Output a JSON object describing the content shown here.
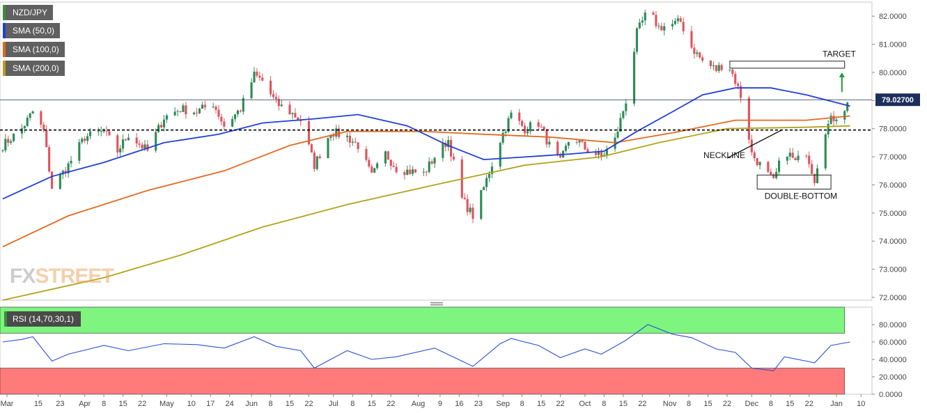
{
  "legend": {
    "symbol": "NZD/JPY",
    "sma50": "SMA (50,0)",
    "sma100": "SMA (100,0)",
    "sma200": "SMA (200,0)"
  },
  "rsi_label": "RSI (14,70,30,1)",
  "watermark": {
    "part1": "FX",
    "part2": "STREET"
  },
  "colors": {
    "up": "#2e8b57",
    "down": "#e0535c",
    "sma50": "#1f3fd6",
    "sma100": "#e2691f",
    "sma200": "#b3a21a",
    "rsi_line": "#2a4fd4",
    "overbought_zone": "#7ef57e",
    "oversold_zone": "#ff7b7b",
    "price_badge": "#1c2f5a"
  },
  "chart_data": [
    {
      "type": "candlestick",
      "title": "NZD/JPY",
      "xlabel": "",
      "ylabel": "",
      "ylim": [
        71.9,
        82.5
      ],
      "y_ticks": [
        "72.0000",
        "73.0000",
        "74.0000",
        "75.0000",
        "76.0000",
        "77.0000",
        "78.0000",
        "79.0000",
        "80.0000",
        "81.0000",
        "82.0000"
      ],
      "x_ticks": [
        "Mar",
        "15",
        "23",
        "Apr",
        "8",
        "15",
        "22",
        "May",
        "10",
        "17",
        "24",
        "Jun",
        "8",
        "15",
        "22",
        "Jul",
        "8",
        "15",
        "22",
        "Aug",
        "9",
        "16",
        "23",
        "Sep",
        "8",
        "15",
        "22",
        "Oct",
        "8",
        "15",
        "22",
        "Nov",
        "8",
        "15",
        "22",
        "Dec",
        "8",
        "15",
        "22",
        "Jan",
        "10"
      ],
      "last_price": "79.02700",
      "horizontal_line": 79.027,
      "dashed_neckline_level": 77.95,
      "x_range_start": "2020-03-02",
      "x_range_end": "2021-01-04",
      "series": [
        {
          "name": "NZD/JPY",
          "kind": "ohlc",
          "anchors": [
            [
              "2020-03-02",
              77.4
            ],
            [
              "2020-03-09",
              78.0
            ],
            [
              "2020-03-13",
              78.6
            ],
            [
              "2020-03-17",
              77.9
            ],
            [
              "2020-03-20",
              75.9
            ],
            [
              "2020-03-26",
              76.7
            ],
            [
              "2020-04-01",
              77.7
            ],
            [
              "2020-04-08",
              77.9
            ],
            [
              "2020-04-13",
              77.2
            ],
            [
              "2020-04-17",
              77.8
            ],
            [
              "2020-04-24",
              77.2
            ],
            [
              "2020-04-30",
              78.4
            ],
            [
              "2020-05-06",
              78.7
            ],
            [
              "2020-05-12",
              78.6
            ],
            [
              "2020-05-18",
              78.9
            ],
            [
              "2020-05-22",
              78.1
            ],
            [
              "2020-05-28",
              78.7
            ],
            [
              "2020-06-02",
              79.9
            ],
            [
              "2020-06-05",
              79.7
            ],
            [
              "2020-06-10",
              78.9
            ],
            [
              "2020-06-15",
              78.6
            ],
            [
              "2020-06-19",
              78.3
            ],
            [
              "2020-06-24",
              76.7
            ],
            [
              "2020-06-30",
              77.9
            ],
            [
              "2020-07-06",
              77.7
            ],
            [
              "2020-07-10",
              77.4
            ],
            [
              "2020-07-15",
              76.3
            ],
            [
              "2020-07-20",
              77.1
            ],
            [
              "2020-07-24",
              76.6
            ],
            [
              "2020-07-28",
              76.5
            ],
            [
              "2020-08-03",
              76.4
            ],
            [
              "2020-08-07",
              77.0
            ],
            [
              "2020-08-12",
              77.6
            ],
            [
              "2020-08-17",
              75.5
            ],
            [
              "2020-08-21",
              74.9
            ],
            [
              "2020-08-25",
              75.9
            ],
            [
              "2020-08-31",
              77.6
            ],
            [
              "2020-09-04",
              78.5
            ],
            [
              "2020-09-09",
              78.0
            ],
            [
              "2020-09-14",
              78.2
            ],
            [
              "2020-09-18",
              77.4
            ],
            [
              "2020-09-22",
              76.8
            ],
            [
              "2020-09-26",
              77.8
            ],
            [
              "2020-10-01",
              77.3
            ],
            [
              "2020-10-07",
              77.0
            ],
            [
              "2020-10-12",
              77.6
            ],
            [
              "2020-10-16",
              79.0
            ],
            [
              "2020-10-20",
              81.4
            ],
            [
              "2020-10-24",
              82.2
            ],
            [
              "2020-10-28",
              81.6
            ],
            [
              "2020-11-02",
              81.7
            ],
            [
              "2020-11-05",
              81.8
            ],
            [
              "2020-11-09",
              80.9
            ],
            [
              "2020-11-13",
              80.4
            ],
            [
              "2020-11-18",
              80.1
            ],
            [
              "2020-11-22",
              80.4
            ],
            [
              "2020-11-25",
              79.7
            ],
            [
              "2020-11-28",
              78.9
            ],
            [
              "2020-12-01",
              77.1
            ],
            [
              "2020-12-05",
              76.6
            ],
            [
              "2020-12-09",
              76.1
            ],
            [
              "2020-12-13",
              77.3
            ],
            [
              "2020-12-17",
              76.8
            ],
            [
              "2020-12-21",
              77.2
            ],
            [
              "2020-12-24",
              76.2
            ],
            [
              "2020-12-27",
              77.8
            ],
            [
              "2020-12-30",
              78.3
            ],
            [
              "2021-01-03",
              78.6
            ],
            [
              "2021-01-06",
              79.0
            ]
          ]
        },
        {
          "name": "SMA (50,0)",
          "kind": "line",
          "points": [
            [
              "2020-03-02",
              75.5
            ],
            [
              "2020-03-20",
              76.3
            ],
            [
              "2020-04-08",
              76.8
            ],
            [
              "2020-04-30",
              77.5
            ],
            [
              "2020-05-20",
              77.8
            ],
            [
              "2020-06-05",
              78.2
            ],
            [
              "2020-06-24",
              78.35
            ],
            [
              "2020-07-10",
              78.5
            ],
            [
              "2020-07-28",
              78.1
            ],
            [
              "2020-08-12",
              77.4
            ],
            [
              "2020-08-25",
              76.9
            ],
            [
              "2020-09-10",
              77.0
            ],
            [
              "2020-09-26",
              77.1
            ],
            [
              "2020-10-08",
              77.2
            ],
            [
              "2020-10-20",
              77.9
            ],
            [
              "2020-11-02",
              78.6
            ],
            [
              "2020-11-13",
              79.2
            ],
            [
              "2020-11-25",
              79.45
            ],
            [
              "2020-12-08",
              79.45
            ],
            [
              "2020-12-21",
              79.2
            ],
            [
              "2021-01-06",
              78.8
            ]
          ]
        },
        {
          "name": "SMA (100,0)",
          "kind": "line",
          "points": [
            [
              "2020-03-02",
              73.8
            ],
            [
              "2020-03-26",
              74.9
            ],
            [
              "2020-04-24",
              75.8
            ],
            [
              "2020-05-22",
              76.5
            ],
            [
              "2020-06-15",
              77.4
            ],
            [
              "2020-07-06",
              77.9
            ],
            [
              "2020-08-03",
              77.9
            ],
            [
              "2020-08-25",
              77.8
            ],
            [
              "2020-09-18",
              77.7
            ],
            [
              "2020-10-12",
              77.5
            ],
            [
              "2020-11-02",
              77.85
            ],
            [
              "2020-11-25",
              78.3
            ],
            [
              "2020-12-21",
              78.3
            ],
            [
              "2021-01-06",
              78.45
            ]
          ]
        },
        {
          "name": "SMA (200,0)",
          "kind": "line",
          "points": [
            [
              "2020-03-02",
              71.9
            ],
            [
              "2020-04-08",
              72.7
            ],
            [
              "2020-05-06",
              73.5
            ],
            [
              "2020-06-05",
              74.5
            ],
            [
              "2020-07-06",
              75.3
            ],
            [
              "2020-08-07",
              76.0
            ],
            [
              "2020-09-09",
              76.7
            ],
            [
              "2020-10-07",
              77.0
            ],
            [
              "2020-10-28",
              77.5
            ],
            [
              "2020-11-22",
              78.0
            ],
            [
              "2020-12-21",
              78.05
            ],
            [
              "2021-01-06",
              78.1
            ]
          ]
        }
      ],
      "annotations": [
        {
          "text": "TARGET",
          "x": "2021-01-02",
          "y": 80.55
        },
        {
          "text": "NECKLINE",
          "x": "2020-11-21",
          "y": 76.95
        },
        {
          "text": "DOUBLE-BOTTOM",
          "x": "2020-12-19",
          "y": 75.5
        }
      ],
      "boxes": [
        {
          "x0": "2020-11-23",
          "x1": "2021-01-04",
          "y0": 80.15,
          "y1": 80.4
        },
        {
          "x0": "2020-12-03",
          "x1": "2020-12-30",
          "y0": 75.85,
          "y1": 76.35
        }
      ],
      "neckline_segment": {
        "x0": "2020-11-22",
        "y0": 76.95,
        "x1": "2020-12-12",
        "y1": 77.95
      },
      "target_arrow": {
        "x": "2021-01-03",
        "y_from": 79.3,
        "y_to": 80.0
      }
    },
    {
      "type": "line",
      "title": "RSI (14,70,30,1)",
      "xlabel": "",
      "ylabel": "",
      "ylim": [
        0,
        100
      ],
      "y_ticks": [
        "0.0000",
        "20.0000",
        "40.0000",
        "60.0000",
        "80.0000"
      ],
      "overbought": 70,
      "oversold": 30,
      "series": [
        {
          "name": "RSI (14,70,30,1)",
          "points": [
            [
              "2020-03-02",
              60
            ],
            [
              "2020-03-09",
              63
            ],
            [
              "2020-03-13",
              66
            ],
            [
              "2020-03-20",
              38
            ],
            [
              "2020-03-26",
              46
            ],
            [
              "2020-04-08",
              56
            ],
            [
              "2020-04-17",
              50
            ],
            [
              "2020-04-30",
              58
            ],
            [
              "2020-05-12",
              57
            ],
            [
              "2020-05-22",
              53
            ],
            [
              "2020-06-02",
              66
            ],
            [
              "2020-06-10",
              55
            ],
            [
              "2020-06-19",
              50
            ],
            [
              "2020-06-24",
              30
            ],
            [
              "2020-07-06",
              50
            ],
            [
              "2020-07-15",
              40
            ],
            [
              "2020-07-24",
              43
            ],
            [
              "2020-08-07",
              53
            ],
            [
              "2020-08-17",
              38
            ],
            [
              "2020-08-21",
              32
            ],
            [
              "2020-08-31",
              58
            ],
            [
              "2020-09-04",
              64
            ],
            [
              "2020-09-14",
              56
            ],
            [
              "2020-09-22",
              42
            ],
            [
              "2020-10-01",
              52
            ],
            [
              "2020-10-07",
              46
            ],
            [
              "2020-10-16",
              62
            ],
            [
              "2020-10-24",
              80
            ],
            [
              "2020-11-02",
              69
            ],
            [
              "2020-11-09",
              65
            ],
            [
              "2020-11-18",
              52
            ],
            [
              "2020-11-25",
              48
            ],
            [
              "2020-12-01",
              30
            ],
            [
              "2020-12-09",
              27
            ],
            [
              "2020-12-13",
              43
            ],
            [
              "2020-12-21",
              38
            ],
            [
              "2020-12-24",
              36
            ],
            [
              "2020-12-30",
              56
            ],
            [
              "2021-01-06",
              60
            ]
          ]
        }
      ]
    }
  ]
}
